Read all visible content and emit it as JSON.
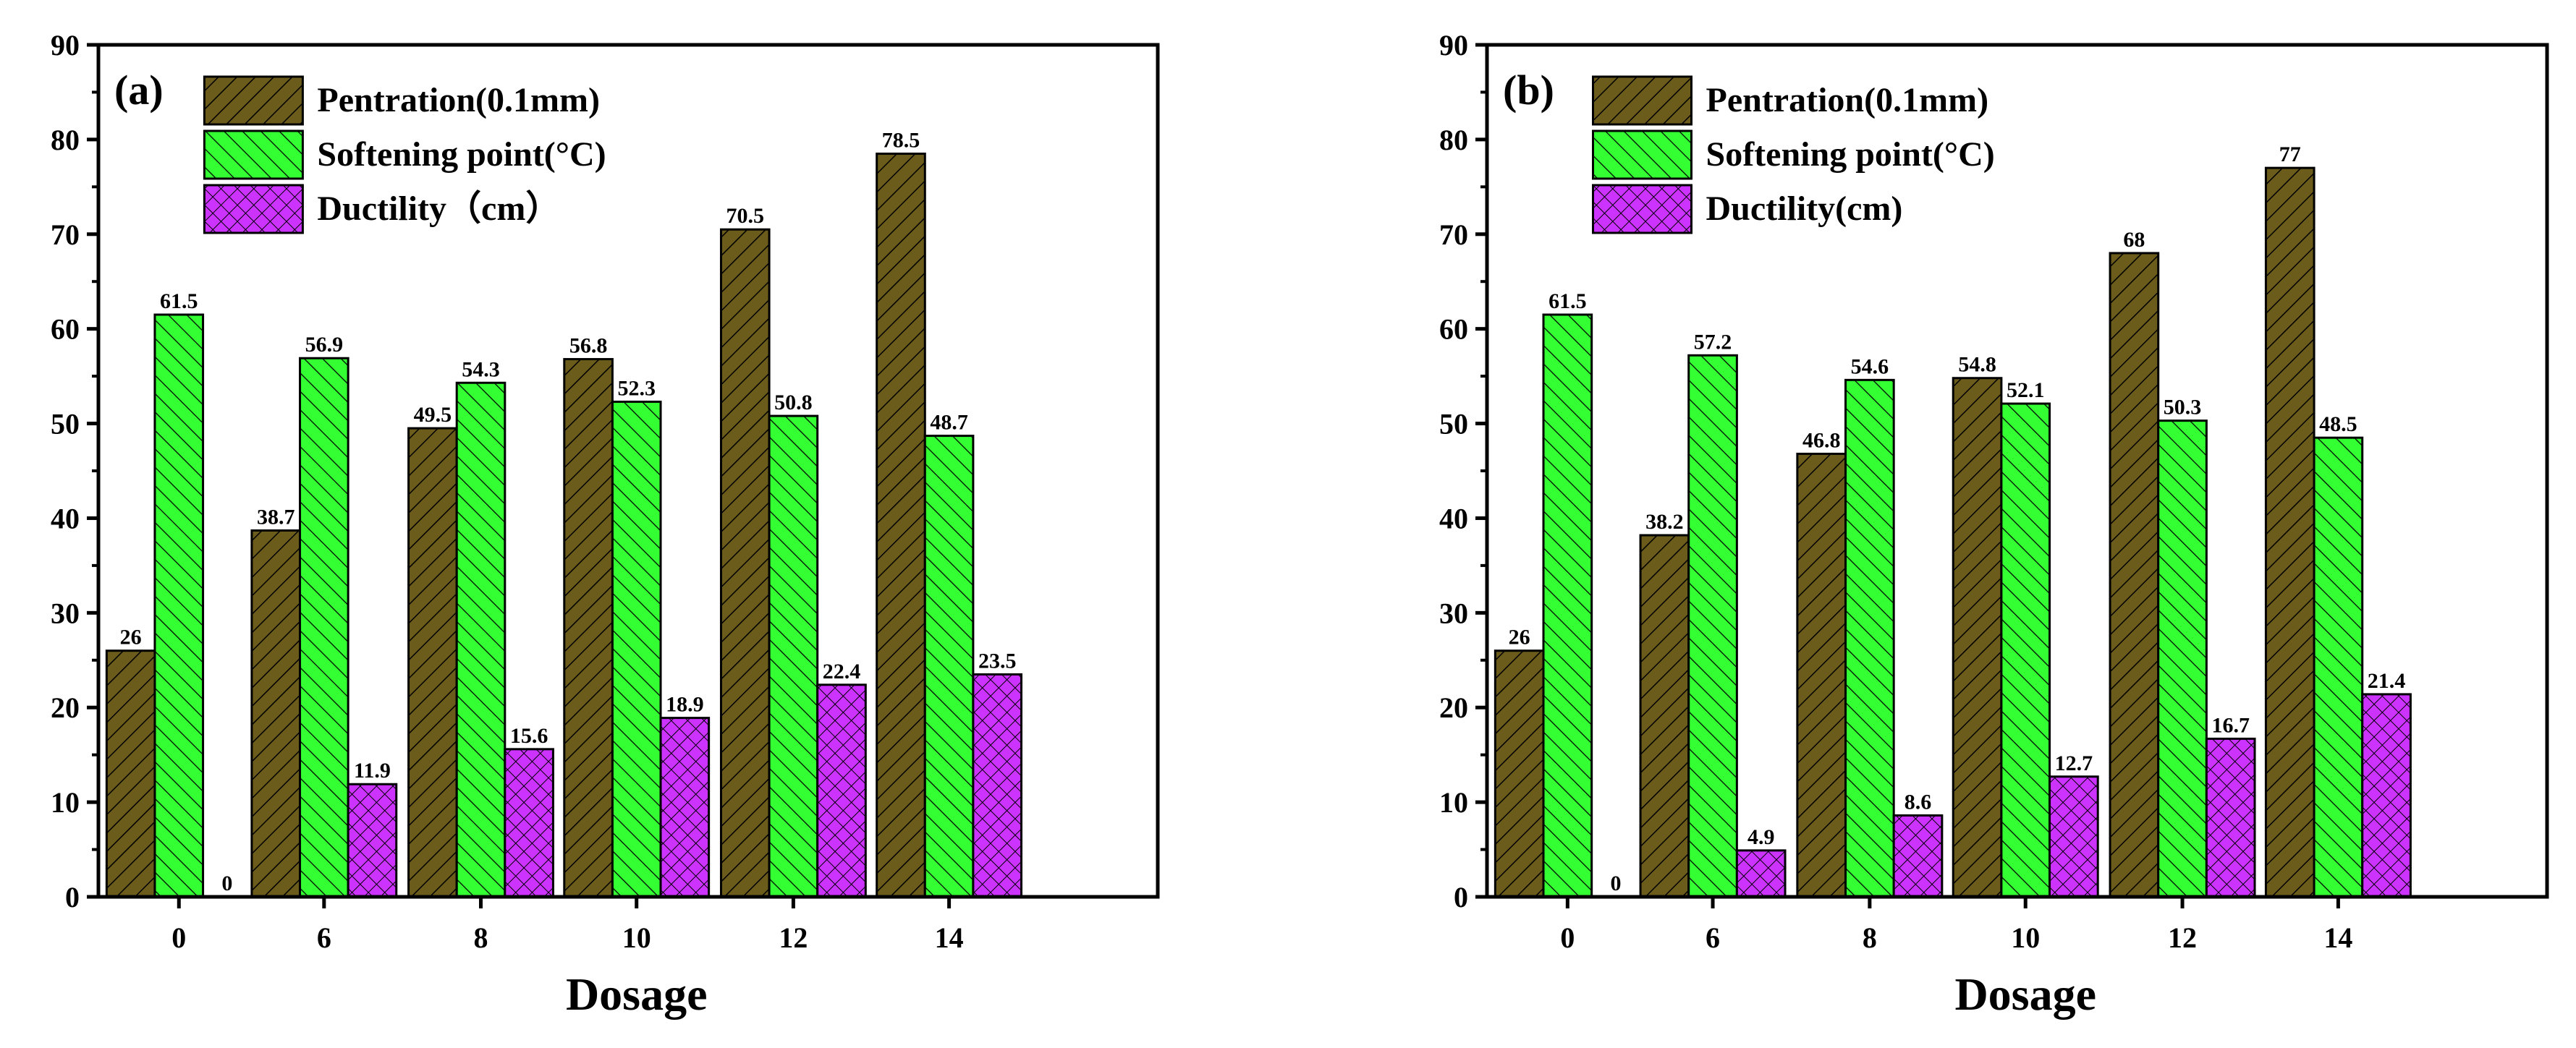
{
  "chart_data": [
    {
      "type": "bar",
      "panel_label": "(a)",
      "categories": [
        "0",
        "6",
        "8",
        "10",
        "12",
        "14"
      ],
      "series": [
        {
          "name": "Pentration(0.1mm)",
          "values": [
            26,
            38.7,
            49.5,
            56.8,
            70.5,
            78.5
          ],
          "labels": [
            "26",
            "38.7",
            "49.5",
            "56.8",
            "70.5",
            "78.5"
          ],
          "color": "#6b5c1c",
          "pattern": "diagonal-right"
        },
        {
          "name": "Softening point(°C)",
          "values": [
            61.5,
            56.9,
            54.3,
            52.3,
            50.8,
            48.7
          ],
          "labels": [
            "61.5",
            "56.9",
            "54.3",
            "52.3",
            "50.8",
            "48.7"
          ],
          "color": "#33ff33",
          "pattern": "diagonal-left"
        },
        {
          "name": "Ductility（cm）",
          "values": [
            0,
            11.9,
            15.6,
            18.9,
            22.4,
            23.5
          ],
          "labels": [
            "0",
            "11.9",
            "15.6",
            "18.9",
            "22.4",
            "23.5"
          ],
          "color": "#cc33ff",
          "pattern": "crosshatch"
        }
      ],
      "xlabel": "Dosage",
      "ylabel": "",
      "ylim": [
        0,
        90
      ],
      "yticks": [
        "0",
        "10",
        "20",
        "30",
        "40",
        "50",
        "60",
        "70",
        "80",
        "90"
      ],
      "legend": "top-left"
    },
    {
      "type": "bar",
      "panel_label": "(b)",
      "categories": [
        "0",
        "6",
        "8",
        "10",
        "12",
        "14"
      ],
      "series": [
        {
          "name": "Pentration(0.1mm)",
          "values": [
            26,
            38.2,
            46.8,
            54.8,
            68,
            77
          ],
          "labels": [
            "26",
            "38.2",
            "46.8",
            "54.8",
            "68",
            "77"
          ],
          "color": "#6b5c1c",
          "pattern": "diagonal-right"
        },
        {
          "name": "Softening point(°C)",
          "values": [
            61.5,
            57.2,
            54.6,
            52.1,
            50.3,
            48.5
          ],
          "labels": [
            "61.5",
            "57.2",
            "54.6",
            "52.1",
            "50.3",
            "48.5"
          ],
          "color": "#33ff33",
          "pattern": "diagonal-left"
        },
        {
          "name": "Ductility(cm)",
          "values": [
            0,
            4.9,
            8.6,
            12.7,
            16.7,
            21.4
          ],
          "labels": [
            "0",
            "4.9",
            "8.6",
            "12.7",
            "16.7",
            "21.4"
          ],
          "color": "#cc33ff",
          "pattern": "crosshatch"
        }
      ],
      "xlabel": "Dosage",
      "ylabel": "",
      "ylim": [
        0,
        90
      ],
      "yticks": [
        "0",
        "10",
        "20",
        "30",
        "40",
        "50",
        "60",
        "70",
        "80",
        "90"
      ],
      "legend": "top-left"
    }
  ]
}
